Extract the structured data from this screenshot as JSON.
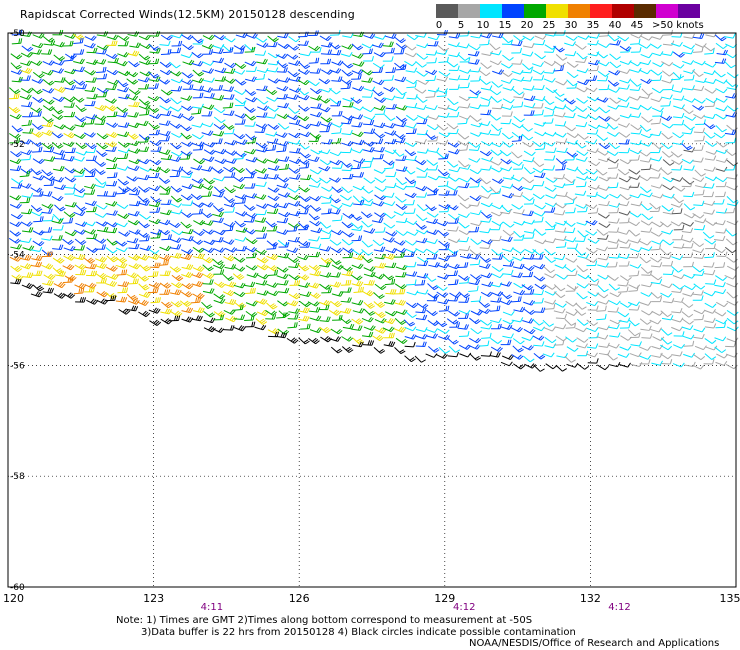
{
  "title": "Rapidscat Corrected Winds(12.5KM) 20150128 descending",
  "legend": {
    "segments": [
      {
        "color": "#5a5a5a"
      },
      {
        "color": "#a6a6a6"
      },
      {
        "color": "#00e5ff"
      },
      {
        "color": "#0044ff"
      },
      {
        "color": "#00a800"
      },
      {
        "color": "#f0e000"
      },
      {
        "color": "#f08000"
      },
      {
        "color": "#ff1e1e"
      },
      {
        "color": "#b00000"
      },
      {
        "color": "#5a2b00"
      },
      {
        "color": "#d000d0"
      },
      {
        "color": "#6b00a0"
      }
    ],
    "labels": [
      "0",
      "5",
      "10",
      "15",
      "20",
      "25",
      "30",
      "35",
      "40",
      "45"
    ],
    "last_label": ">50 knots"
  },
  "chart_data": {
    "type": "scatter",
    "title": "Rapidscat Corrected Winds(12.5KM) 20150128 descending",
    "xlabel": "",
    "ylabel": "",
    "xlim": [
      120,
      135
    ],
    "ylim": [
      -60,
      -50
    ],
    "grid": true,
    "x_ticks": [
      "120",
      "123",
      "126",
      "129",
      "132",
      "135"
    ],
    "y_ticks": [
      "-50",
      "-52",
      "-54",
      "-56",
      "-58",
      "-60"
    ],
    "pass_times": [
      {
        "lon": 124.2,
        "label": "4:11"
      },
      {
        "lon": 129.4,
        "label": "4:12"
      },
      {
        "lon": 132.6,
        "label": "4:12"
      }
    ],
    "swath_lower_edge": [
      {
        "lon": 120,
        "lat": -54.6
      },
      {
        "lon": 123,
        "lat": -55.2
      },
      {
        "lon": 126,
        "lat": -55.6
      },
      {
        "lon": 129,
        "lat": -55.9
      },
      {
        "lon": 132,
        "lat": -56.1
      },
      {
        "lon": 135,
        "lat": -56.3
      }
    ],
    "wind_regions": [
      {
        "lon": [
          120,
          123
        ],
        "lat": [
          -52,
          -50
        ],
        "speed_kt": 22
      },
      {
        "lon": [
          123,
          128
        ],
        "lat": [
          -52,
          -50
        ],
        "speed_kt": 17
      },
      {
        "lon": [
          128,
          135
        ],
        "lat": [
          -52,
          -50
        ],
        "speed_kt": 12
      },
      {
        "lon": [
          120,
          126
        ],
        "lat": [
          -54,
          -52
        ],
        "speed_kt": 18
      },
      {
        "lon": [
          126,
          129
        ],
        "lat": [
          -54,
          -52
        ],
        "speed_kt": 14
      },
      {
        "lon": [
          129,
          132
        ],
        "lat": [
          -54,
          -52
        ],
        "speed_kt": 12
      },
      {
        "lon": [
          132,
          135
        ],
        "lat": [
          -54,
          -52
        ],
        "speed_kt": 8
      },
      {
        "lon": [
          120,
          124
        ],
        "lat": [
          -56,
          -54
        ],
        "speed_kt": 30
      },
      {
        "lon": [
          124,
          128
        ],
        "lat": [
          -56,
          -54
        ],
        "speed_kt": 24
      },
      {
        "lon": [
          128,
          131
        ],
        "lat": [
          -56,
          -54
        ],
        "speed_kt": 16
      },
      {
        "lon": [
          131,
          135
        ],
        "lat": [
          -56,
          -54
        ],
        "speed_kt": 9
      }
    ]
  },
  "notes": {
    "line1": "Note: 1) Times are GMT 2)Times along bottom correspond to measurement at -50S",
    "line2": "3)Data buffer is 22 hrs from 20150128 4) Black circles indicate possible contamination",
    "credit": "NOAA/NESDIS/Office of Research and Applications"
  }
}
